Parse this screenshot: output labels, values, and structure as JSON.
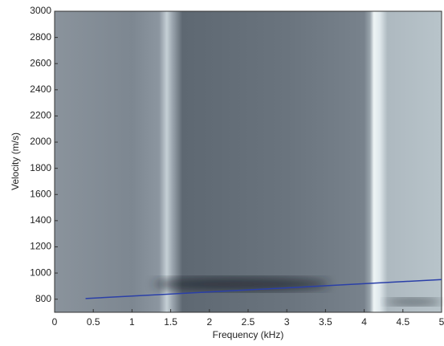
{
  "chart_data": {
    "type": "line",
    "x_label": "Frequency (kHz)",
    "y_label": "Velocity (m/s)",
    "x": [
      0.4,
      5
    ],
    "series": [
      {
        "color": "#2a3fa8",
        "values": [
          805,
          950
        ]
      }
    ],
    "xlim": [
      0,
      5
    ],
    "xticks": [
      0,
      0.5,
      1,
      1.5,
      2,
      2.5,
      3,
      3.5,
      4,
      4.5,
      5
    ],
    "ylim": [
      700,
      3000
    ],
    "yticks": [
      800,
      1000,
      1200,
      1400,
      1600,
      1800,
      2000,
      2200,
      2400,
      2600,
      2800,
      3000
    ]
  }
}
